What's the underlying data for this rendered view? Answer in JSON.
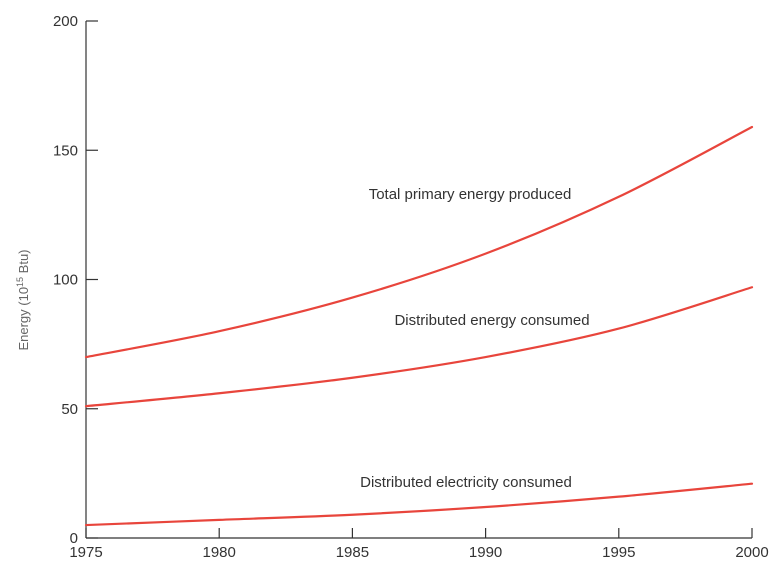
{
  "chart_data": {
    "type": "line",
    "title": "",
    "xlabel": "",
    "ylabel": "Energy (10",
    "ylabel_sup": "15",
    "ylabel_unit": " Btu)",
    "xlim": [
      1975,
      2000
    ],
    "ylim": [
      0,
      200
    ],
    "x_ticks": [
      1975,
      1980,
      1985,
      1990,
      1995,
      2000
    ],
    "y_ticks": [
      0,
      50,
      100,
      150,
      200
    ],
    "grid": false,
    "series_color": "#e8453c",
    "series": [
      {
        "name": "Total primary energy produced",
        "x": [
          1975,
          1980,
          1985,
          1990,
          1995,
          2000
        ],
        "values": [
          70,
          80,
          93,
          110,
          132,
          159
        ]
      },
      {
        "name": "Distributed energy consumed",
        "x": [
          1975,
          1980,
          1985,
          1990,
          1995,
          2000
        ],
        "values": [
          51,
          56,
          62,
          70,
          81,
          97
        ]
      },
      {
        "name": "Distributed electricity consumed",
        "x": [
          1975,
          1980,
          1985,
          1990,
          1995,
          2000
        ],
        "values": [
          5,
          7,
          9,
          12,
          16,
          21
        ]
      }
    ]
  }
}
